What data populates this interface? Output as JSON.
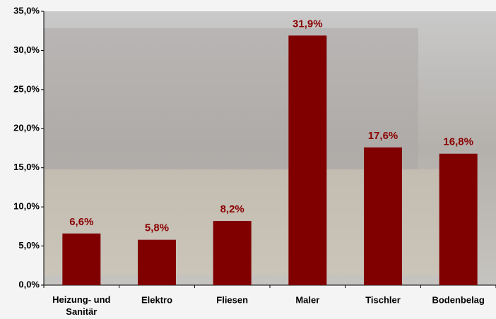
{
  "chart_data": {
    "type": "bar",
    "categories": [
      "Heizung- und Sanitär",
      "Elektro",
      "Fliesen",
      "Maler",
      "Tischler",
      "Bodenbelag"
    ],
    "values": [
      6.6,
      5.8,
      8.2,
      31.9,
      17.6,
      16.8
    ],
    "value_labels": [
      "6,6%",
      "5,8%",
      "8,2%",
      "31,9%",
      "17,6%",
      "16,8%"
    ],
    "color": "#800000",
    "ylim": [
      0,
      35
    ],
    "yticks": [
      {
        "value": 0,
        "label": "0,0%"
      },
      {
        "value": 5,
        "label": "5,0%"
      },
      {
        "value": 10,
        "label": "10,0%"
      },
      {
        "value": 15,
        "label": "15,0%"
      },
      {
        "value": 20,
        "label": "20,0%"
      },
      {
        "value": 25,
        "label": "25,0%"
      },
      {
        "value": 30,
        "label": "30,0%"
      },
      {
        "value": 35,
        "label": "35,0%"
      }
    ]
  }
}
